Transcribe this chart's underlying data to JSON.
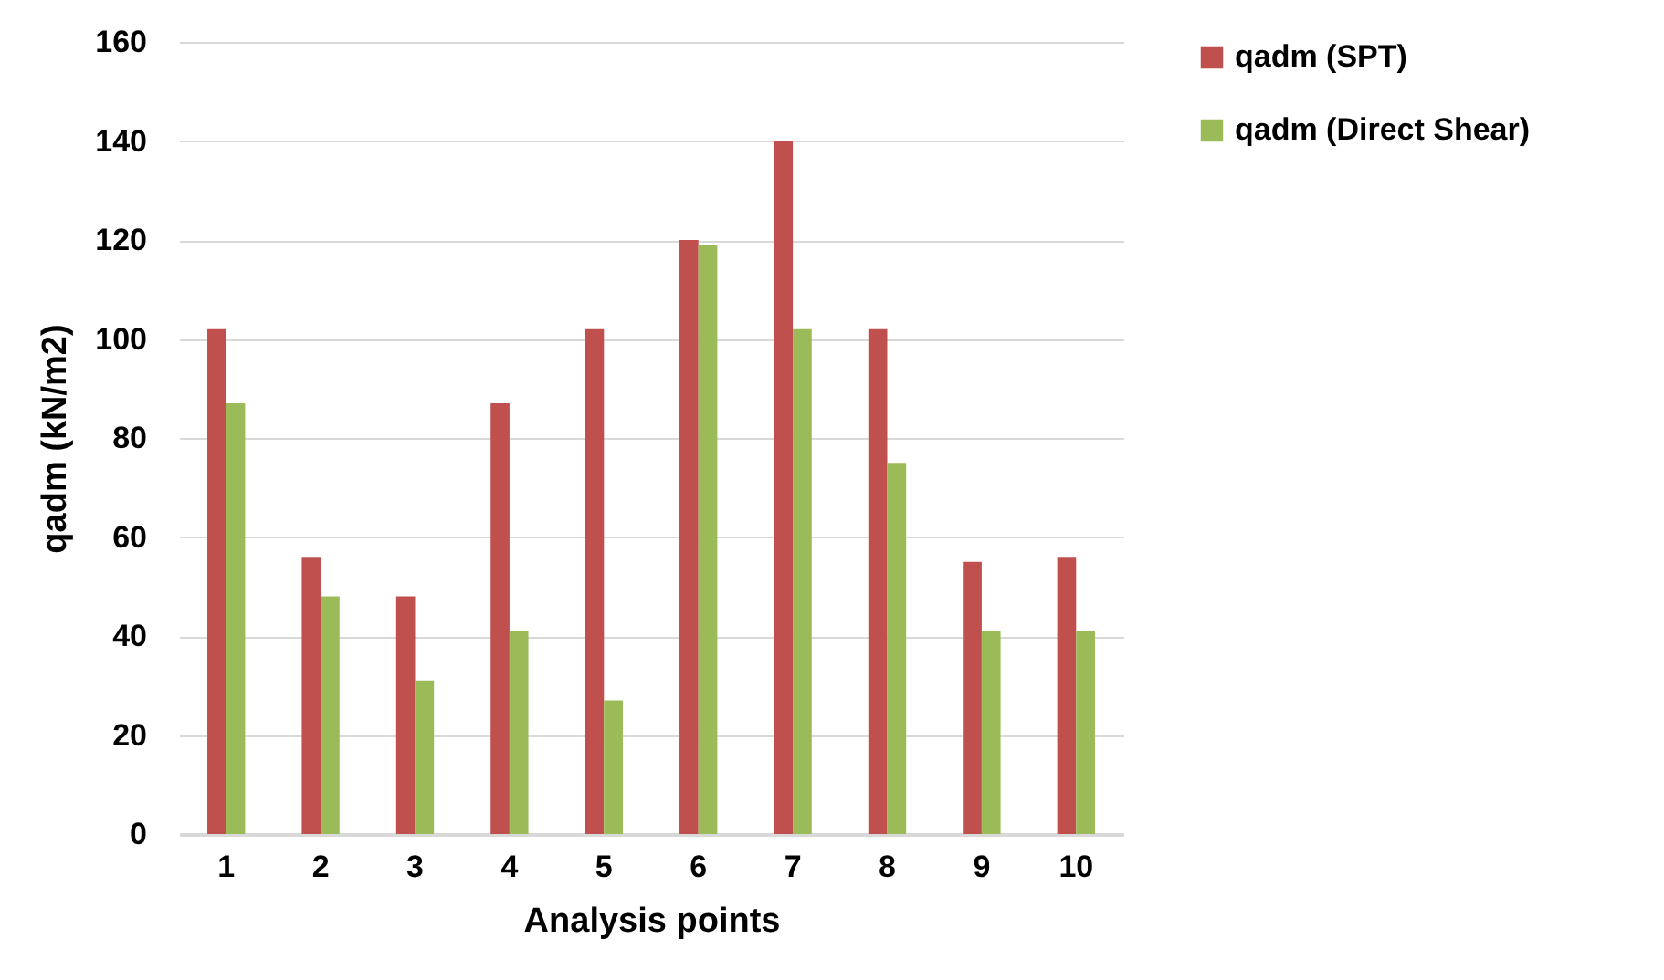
{
  "chart_data": {
    "type": "bar",
    "xlabel": "Analysis points",
    "ylabel": "qadm (kN/m2)",
    "categories": [
      "1",
      "2",
      "3",
      "4",
      "5",
      "6",
      "7",
      "8",
      "9",
      "10"
    ],
    "series": [
      {
        "name": "qadm (SPT)",
        "color": "#c0504d",
        "values": [
          102,
          56,
          48,
          87,
          102,
          120,
          140,
          102,
          55,
          56
        ]
      },
      {
        "name": "qadm (Direct Shear)",
        "color": "#9bbb59",
        "values": [
          87,
          48,
          31,
          41,
          27,
          119,
          102,
          75,
          41,
          41
        ]
      }
    ],
    "ylim": [
      0,
      160
    ],
    "yticks": [
      0,
      20,
      40,
      60,
      80,
      100,
      120,
      140,
      160
    ],
    "grid": true,
    "legend": "right"
  }
}
